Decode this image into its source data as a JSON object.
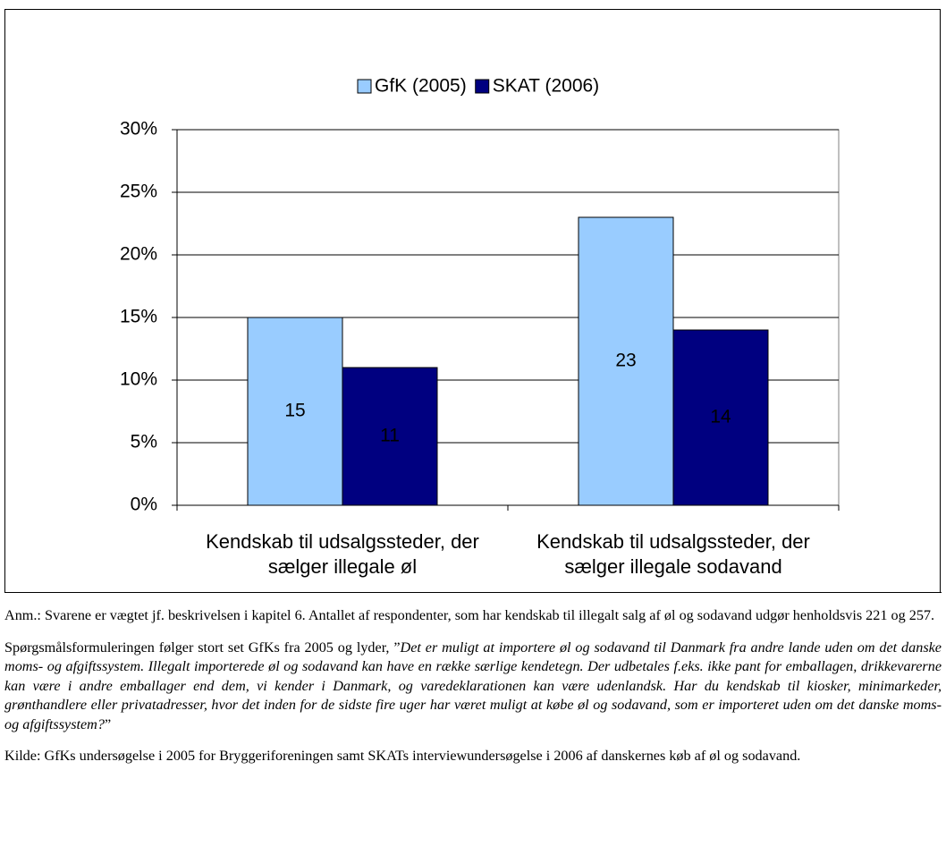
{
  "chart_data": {
    "type": "bar",
    "categories": [
      "Kendskab til udsalgssteder, der sælger illegale øl",
      "Kendskab til udsalgssteder, der sælger illegale sodavand"
    ],
    "series": [
      {
        "name": "GfK (2005)",
        "color": "#99ccff",
        "values": [
          15,
          23
        ]
      },
      {
        "name": "SKAT (2006)",
        "color": "#000080",
        "values": [
          11,
          14
        ]
      }
    ],
    "ylim": [
      0,
      30
    ],
    "yticks": [
      {
        "value": 0,
        "label": "0%"
      },
      {
        "value": 5,
        "label": "5%"
      },
      {
        "value": 10,
        "label": "10%"
      },
      {
        "value": 15,
        "label": "15%"
      },
      {
        "value": 20,
        "label": "20%"
      },
      {
        "value": 25,
        "label": "25%"
      },
      {
        "value": 30,
        "label": "30%"
      }
    ],
    "grid": true,
    "legend": "top"
  },
  "notes": {
    "annotation": "Anm.: Svarene er vægtet jf. beskrivelsen i kapitel 6. Antallet af respondenter, som har kendskab til illegalt salg af øl og sodavand udgør henholdsvis 221 og 257.",
    "question_intro": "Spørgsmålsformuleringen følger stort set GfKs fra 2005 og lyder, ”",
    "question": "Det er muligt at importere øl og sodavand til Danmark fra andre lande uden om det danske moms- og afgiftssystem. Illegalt importerede øl og sodavand kan have en række særlige kendetegn. Der udbetales f.eks. ikke pant for emballagen, drikkevarerne kan være i andre emballager end dem, vi kender i Danmark, og varedeklarationen kan være udenlandsk. Har du kendskab til kiosker, minimarkeder, grønthandlere eller privatadresser, hvor det inden for de sidste fire uger har været muligt at købe øl og sodavand, som er importeret uden om det danske moms- og afgiftssystem?",
    "question_end": "”",
    "source": "Kilde: GfKs undersøgelse i 2005 for Bryggeriforeningen samt SKATs interviewundersøgelse i 2006 af danskernes køb af øl og sodavand."
  }
}
